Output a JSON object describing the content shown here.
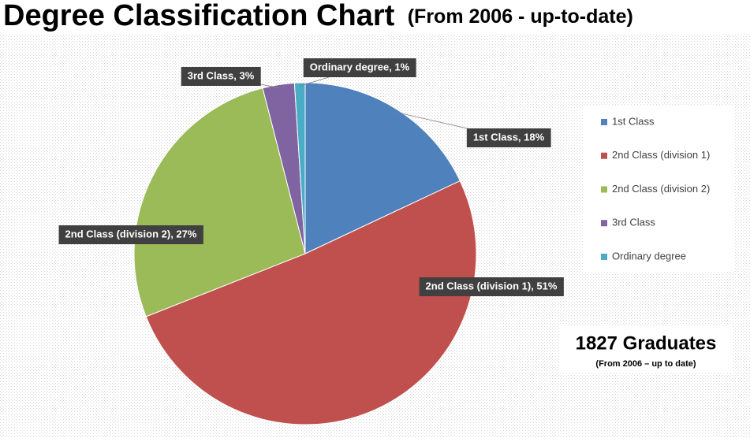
{
  "chart_data": {
    "type": "pie",
    "title": "Degree Classification Chart",
    "subtitle": "(From 2006 - up-to-date)",
    "categories": [
      "1st Class",
      "2nd Class (division 1)",
      "2nd Class (division 2)",
      "3rd Class",
      "Ordinary degree"
    ],
    "values": [
      18,
      51,
      27,
      3,
      1
    ],
    "value_labels": [
      "1st Class, 18%",
      "2nd Class (division 1), 51%",
      "2nd Class (division 2), 27%",
      "3rd Class, 3%",
      "Ordinary degree, 1%"
    ],
    "colors": [
      "#4f81bd",
      "#c0504d",
      "#9bbb59",
      "#8064a2",
      "#4bacc6"
    ],
    "legend": "right",
    "annotation": {
      "title": "1827 Graduates",
      "subtitle": "(From 2006 – up to date)"
    }
  }
}
